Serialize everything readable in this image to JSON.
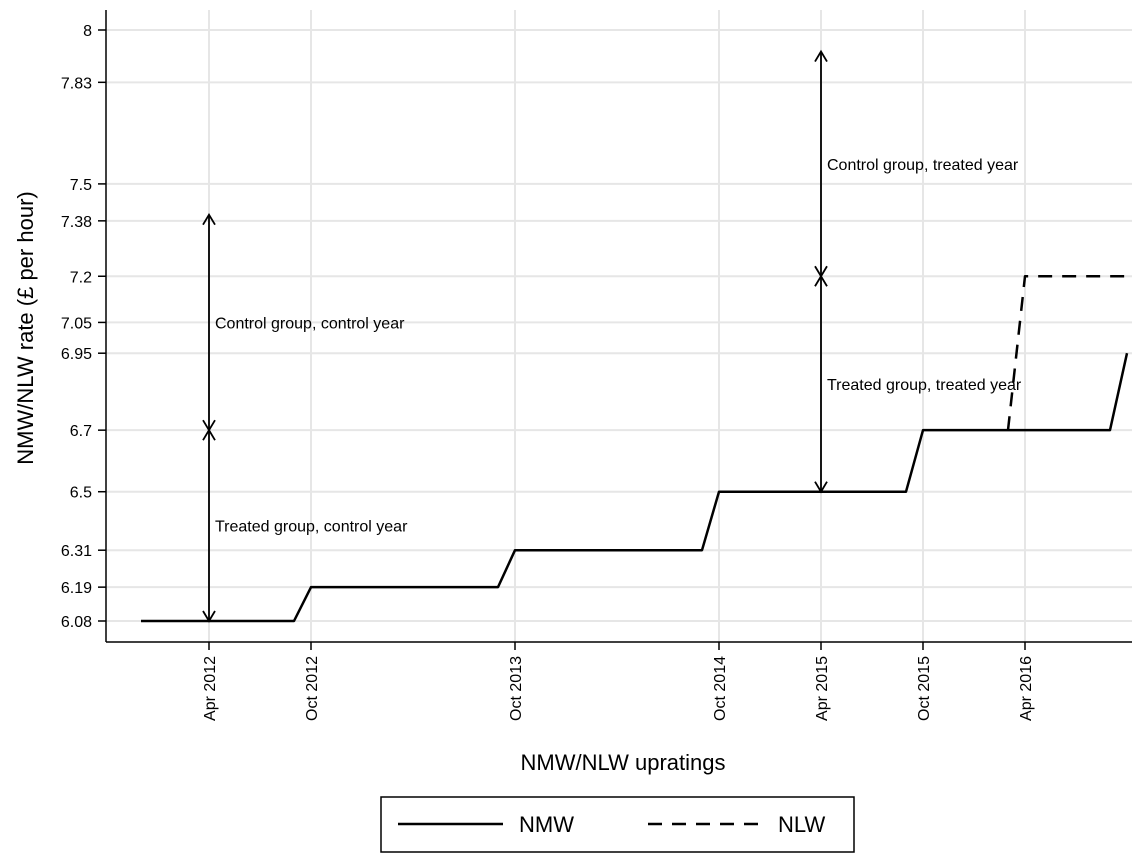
{
  "chart_data": {
    "type": "line",
    "xlabel": "NMW/NLW upratings",
    "ylabel": "NMW/NLW rate (£ per hour)",
    "ylim": [
      6.0,
      8.1
    ],
    "y_ticks": [
      6.08,
      6.19,
      6.31,
      6.5,
      6.7,
      6.95,
      7.05,
      7.2,
      7.38,
      7.5,
      7.83,
      8
    ],
    "y_tick_labels": [
      "6.08",
      "6.19",
      "6.31",
      "6.5",
      "6.7",
      "6.95",
      "7.05",
      "7.2",
      "7.38",
      "7.5",
      "7.83",
      "8"
    ],
    "x_ticks": [
      "2012-04",
      "2012-10",
      "2013-10",
      "2014-10",
      "2015-04",
      "2015-10",
      "2016-04"
    ],
    "x_tick_labels": [
      "Apr 2012",
      "Oct 2012",
      "Oct 2013",
      "Oct 2014",
      "Apr 2015",
      "Oct 2015",
      "Apr 2016"
    ],
    "xlim": [
      "2011-12",
      "2017-01"
    ],
    "grid": true,
    "legend": {
      "position": "bottom",
      "entries": [
        "NMW",
        "NLW"
      ]
    },
    "series": [
      {
        "name": "NMW",
        "style": "solid",
        "points": [
          [
            "2011-12",
            6.08
          ],
          [
            "2012-09",
            6.08
          ],
          [
            "2012-10",
            6.19
          ],
          [
            "2013-09",
            6.19
          ],
          [
            "2013-10",
            6.31
          ],
          [
            "2014-09",
            6.31
          ],
          [
            "2014-10",
            6.5
          ],
          [
            "2015-09",
            6.5
          ],
          [
            "2015-10",
            6.7
          ],
          [
            "2016-09",
            6.7
          ],
          [
            "2016-10",
            6.95
          ]
        ]
      },
      {
        "name": "NLW",
        "style": "dashed",
        "points": [
          [
            "2016-03",
            6.7
          ],
          [
            "2016-04",
            7.2
          ],
          [
            "2017-01",
            7.2
          ]
        ]
      }
    ],
    "annotations": [
      {
        "text": "Control group, control year",
        "x": "2012-04",
        "from": 6.7,
        "to": 7.4
      },
      {
        "text": "Treated group, control year",
        "x": "2012-04",
        "from": 6.08,
        "to": 6.7
      },
      {
        "text": "Control group, treated year",
        "x": "2015-04",
        "from": 7.2,
        "to": 7.93
      },
      {
        "text": "Treated group, treated year",
        "x": "2015-04",
        "from": 6.5,
        "to": 7.2
      }
    ]
  },
  "colors": {
    "line": "#000000",
    "grid": "#e6e6e6",
    "background": "#ffffff"
  }
}
